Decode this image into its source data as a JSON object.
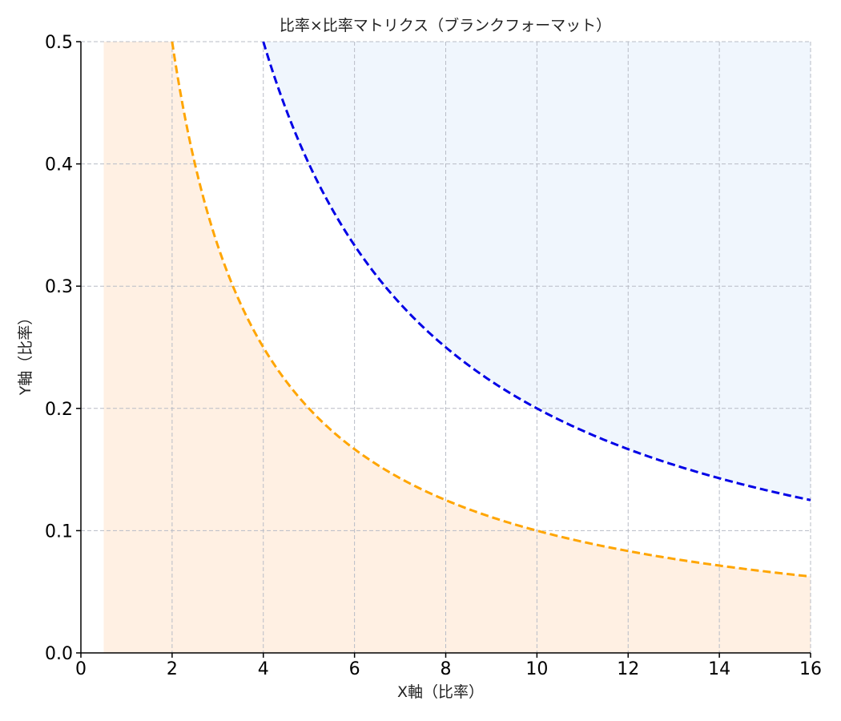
{
  "chart_data": {
    "type": "line",
    "title": "比率×比率マトリクス（ブランクフォーマット）",
    "xlabel": "X軸（比率）",
    "ylabel": "Y軸（比率）",
    "xlim": [
      0,
      16
    ],
    "ylim": [
      0,
      0.5
    ],
    "x_ticks": [
      0,
      2,
      4,
      6,
      8,
      10,
      12,
      14,
      16
    ],
    "y_ticks": [
      0.0,
      0.1,
      0.2,
      0.3,
      0.4,
      0.5
    ],
    "x_tick_labels": [
      "0",
      "2",
      "4",
      "6",
      "8",
      "10",
      "12",
      "14",
      "16"
    ],
    "y_tick_labels": [
      "0.0",
      "0.1",
      "0.2",
      "0.3",
      "0.4",
      "0.5"
    ],
    "grid": true,
    "series": [
      {
        "equation": "y = 1 / x",
        "product": 1,
        "x_range": [
          2,
          16
        ],
        "color": "#FFA500",
        "style": "dashed",
        "fill": "below",
        "fill_color": "#FFF0E3",
        "fill_x_start": 0.5
      },
      {
        "equation": "y = 2 / x",
        "product": 2,
        "x_range": [
          4,
          16
        ],
        "color": "#0000E6",
        "style": "dashed",
        "fill": "above",
        "fill_color": "#F0F6FD"
      }
    ]
  }
}
